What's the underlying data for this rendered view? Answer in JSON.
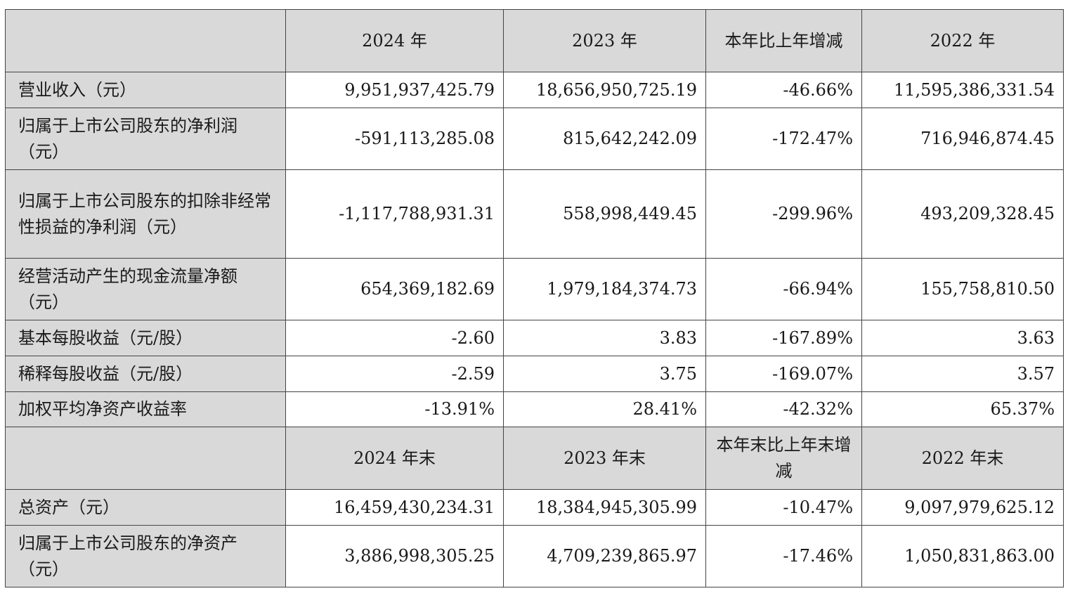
{
  "header1": [
    "",
    "2024 年",
    "2023 年",
    "本年比上年增减",
    "2022 年"
  ],
  "rows1": [
    {
      "label": "营业收入（元）",
      "values": [
        "9,951,937,425.79",
        "18,656,950,725.19",
        "-46.66%",
        "11,595,386,331.54"
      ]
    },
    {
      "label": "归属于上市公司股东的净利润（元）",
      "values": [
        "-591,113,285.08",
        "815,642,242.09",
        "-172.47%",
        "716,946,874.45"
      ]
    },
    {
      "label": "归属于上市公司股东的扣除非经常性损益的净利润（元）",
      "values": [
        "-1,117,788,931.31",
        "558,998,449.45",
        "-299.96%",
        "493,209,328.45"
      ]
    },
    {
      "label": "经营活动产生的现金流量净额（元）",
      "values": [
        "654,369,182.69",
        "1,979,184,374.73",
        "-66.94%",
        "155,758,810.50"
      ]
    },
    {
      "label": "基本每股收益（元/股）",
      "values": [
        "-2.60",
        "3.83",
        "-167.89%",
        "3.63"
      ]
    },
    {
      "label": "稀释每股收益（元/股）",
      "values": [
        "-2.59",
        "3.75",
        "-169.07%",
        "3.57"
      ]
    },
    {
      "label": "加权平均净资产收益率",
      "values": [
        "-13.91%",
        "28.41%",
        "-42.32%",
        "65.37%"
      ]
    }
  ],
  "header2": [
    "",
    "2024 年末",
    "2023 年末",
    "本年末比上年末增减",
    "2022 年末"
  ],
  "rows2": [
    {
      "label": "总资产（元）",
      "values": [
        "16,459,430,234.31",
        "18,384,945,305.99",
        "-10.47%",
        "9,097,979,625.12"
      ]
    },
    {
      "label": "归属于上市公司股东的净资产（元）",
      "values": [
        "3,886,998,305.25",
        "4,709,239,865.97",
        "-17.46%",
        "1,050,831,863.00"
      ]
    }
  ]
}
